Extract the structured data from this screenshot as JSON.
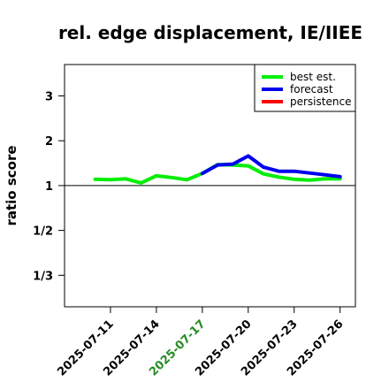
{
  "chart_data": {
    "type": "line",
    "title": "rel. edge displacement, IE/IIEE",
    "ylabel": "ratio score",
    "y_scale": "reciprocal-symmetric",
    "y_ticks": [
      {
        "label": "1/3",
        "value": 0.3333
      },
      {
        "label": "1/2",
        "value": 0.5
      },
      {
        "label": "1",
        "value": 1
      },
      {
        "label": "2",
        "value": 2
      },
      {
        "label": "3",
        "value": 3
      }
    ],
    "ylim": [
      0.27,
      3.7
    ],
    "reference_line": 1,
    "x_ticks": [
      {
        "label": "2025-07-11",
        "color": "#000000"
      },
      {
        "label": "2025-07-14",
        "color": "#000000"
      },
      {
        "label": "2025-07-17",
        "color": "#228B22"
      },
      {
        "label": "2025-07-20",
        "color": "#000000"
      },
      {
        "label": "2025-07-23",
        "color": "#000000"
      },
      {
        "label": "2025-07-26",
        "color": "#000000"
      }
    ],
    "xlim": [
      "2025-07-08",
      "2025-07-27"
    ],
    "legend_position": "top-right",
    "series": [
      {
        "name": "best est.",
        "color": "#00ee00",
        "points": [
          [
            "2025-07-10",
            1.14
          ],
          [
            "2025-07-11",
            1.13
          ],
          [
            "2025-07-12",
            1.15
          ],
          [
            "2025-07-13",
            1.06
          ],
          [
            "2025-07-14",
            1.22
          ],
          [
            "2025-07-15",
            1.18
          ],
          [
            "2025-07-16",
            1.13
          ],
          [
            "2025-07-17",
            1.27
          ],
          [
            "2025-07-18",
            1.47
          ],
          [
            "2025-07-19",
            1.46
          ],
          [
            "2025-07-20",
            1.44
          ],
          [
            "2025-07-21",
            1.26
          ],
          [
            "2025-07-22",
            1.19
          ],
          [
            "2025-07-23",
            1.14
          ],
          [
            "2025-07-24",
            1.12
          ],
          [
            "2025-07-25",
            1.15
          ],
          [
            "2025-07-26",
            1.15
          ]
        ]
      },
      {
        "name": "forecast",
        "color": "#0000ee",
        "points": [
          [
            "2025-07-17",
            1.27
          ],
          [
            "2025-07-18",
            1.46
          ],
          [
            "2025-07-19",
            1.48
          ],
          [
            "2025-07-20",
            1.66
          ],
          [
            "2025-07-21",
            1.41
          ],
          [
            "2025-07-22",
            1.32
          ],
          [
            "2025-07-23",
            1.32
          ],
          [
            "2025-07-24",
            1.28
          ],
          [
            "2025-07-25",
            1.24
          ],
          [
            "2025-07-26",
            1.2
          ]
        ]
      },
      {
        "name": "persistence",
        "color": "#ff0000",
        "points": []
      }
    ]
  }
}
